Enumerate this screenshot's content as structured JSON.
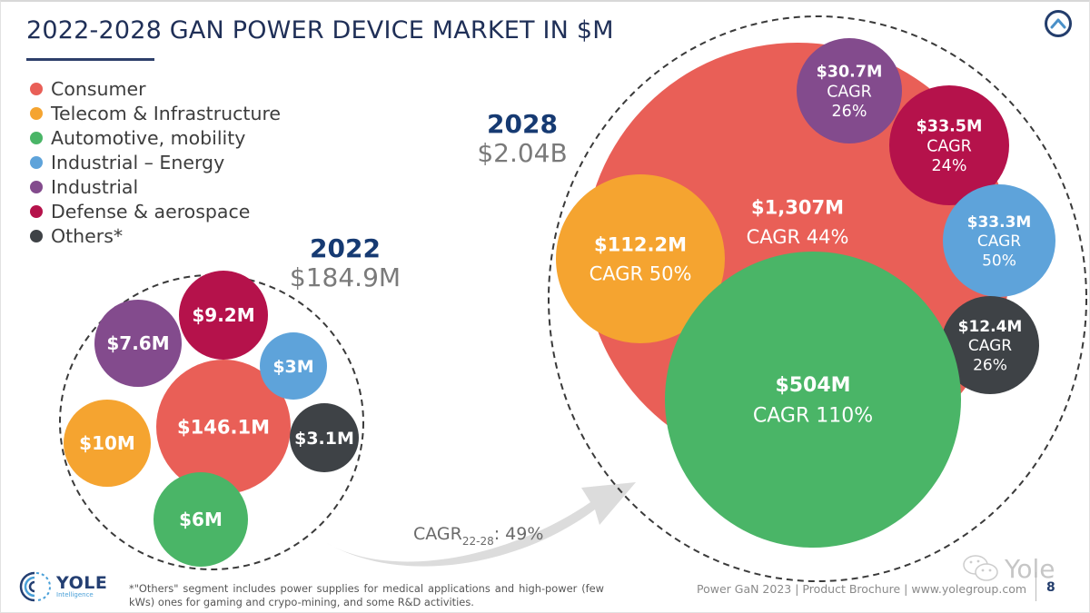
{
  "header": {
    "title": "2022-2028 GAN POWER DEVICE MARKET IN $M",
    "nav_icon": "chevron-up-circle-icon"
  },
  "colors": {
    "consumer": "#e95f57",
    "telecom": "#f5a430",
    "automotive": "#4ab567",
    "industrial_energy": "#5ea3da",
    "industrial": "#834b8d",
    "defense": "#b5124b",
    "others": "#3e4246",
    "title": "#1f2f57",
    "year": "#163a72"
  },
  "legend": [
    {
      "label": "Consumer",
      "key": "consumer"
    },
    {
      "label": "Telecom & Infrastructure",
      "key": "telecom"
    },
    {
      "label": "Automotive, mobility",
      "key": "automotive"
    },
    {
      "label": "Industrial – Energy",
      "key": "industrial_energy"
    },
    {
      "label": "Industrial",
      "key": "industrial"
    },
    {
      "label": "Defense & aerospace",
      "key": "defense"
    },
    {
      "label": "Others*",
      "key": "others"
    }
  ],
  "chart_data": {
    "type": "bubble",
    "title": "2022-2028 GAN POWER DEVICE MARKET IN $M",
    "unit": "$M",
    "categories": [
      "Consumer",
      "Telecom & Infrastructure",
      "Automotive, mobility",
      "Industrial – Energy",
      "Industrial",
      "Defense & aerospace",
      "Others*"
    ],
    "years": [
      {
        "year": "2022",
        "total_label": "$184.9M",
        "segments": [
          {
            "category": "Consumer",
            "key": "consumer",
            "value": 146.1,
            "label": "$146.1M"
          },
          {
            "category": "Telecom & Infrastructure",
            "key": "telecom",
            "value": 10,
            "label": "$10M"
          },
          {
            "category": "Automotive, mobility",
            "key": "automotive",
            "value": 6,
            "label": "$6M"
          },
          {
            "category": "Industrial – Energy",
            "key": "industrial_energy",
            "value": 3,
            "label": "$3M"
          },
          {
            "category": "Industrial",
            "key": "industrial",
            "value": 7.6,
            "label": "$7.6M"
          },
          {
            "category": "Defense & aerospace",
            "key": "defense",
            "value": 9.2,
            "label": "$9.2M"
          },
          {
            "category": "Others*",
            "key": "others",
            "value": 3.1,
            "label": "$3.1M"
          }
        ]
      },
      {
        "year": "2028",
        "total_label": "$2.04B",
        "segments": [
          {
            "category": "Consumer",
            "key": "consumer",
            "value": 1307,
            "label": "$1,307M",
            "cagr": "CAGR 44%"
          },
          {
            "category": "Telecom & Infrastructure",
            "key": "telecom",
            "value": 112.2,
            "label": "$112.2M",
            "cagr": "CAGR 50%"
          },
          {
            "category": "Automotive, mobility",
            "key": "automotive",
            "value": 504,
            "label": "$504M",
            "cagr": "CAGR 110%"
          },
          {
            "category": "Industrial – Energy",
            "key": "industrial_energy",
            "value": 33.3,
            "label": "$33.3M",
            "cagr_lines": [
              "CAGR",
              "50%"
            ]
          },
          {
            "category": "Industrial",
            "key": "industrial",
            "value": 30.7,
            "label": "$30.7M",
            "cagr_lines": [
              "CAGR",
              "26%"
            ]
          },
          {
            "category": "Defense & aerospace",
            "key": "defense",
            "value": 33.5,
            "label": "$33.5M",
            "cagr_lines": [
              "CAGR",
              "24%"
            ]
          },
          {
            "category": "Others*",
            "key": "others",
            "value": 12.4,
            "label": "$12.4M",
            "cagr_lines": [
              "CAGR",
              "26%"
            ]
          }
        ]
      }
    ],
    "overall_cagr": {
      "label": "CAGR",
      "subscript": "22-28",
      "value": ": 49%"
    }
  },
  "footnote": "*\"Others\" segment includes power supplies for medical applications and high-power (few kWs) ones for gaming and crypo-mining, and some R&D activities.",
  "footer": {
    "logo_name": "YOLE",
    "logo_sub": "Intelligence",
    "text": "Power GaN 2023 | Product Brochure | www.yolegroup.com",
    "page": "8",
    "watermark": "Yole"
  }
}
